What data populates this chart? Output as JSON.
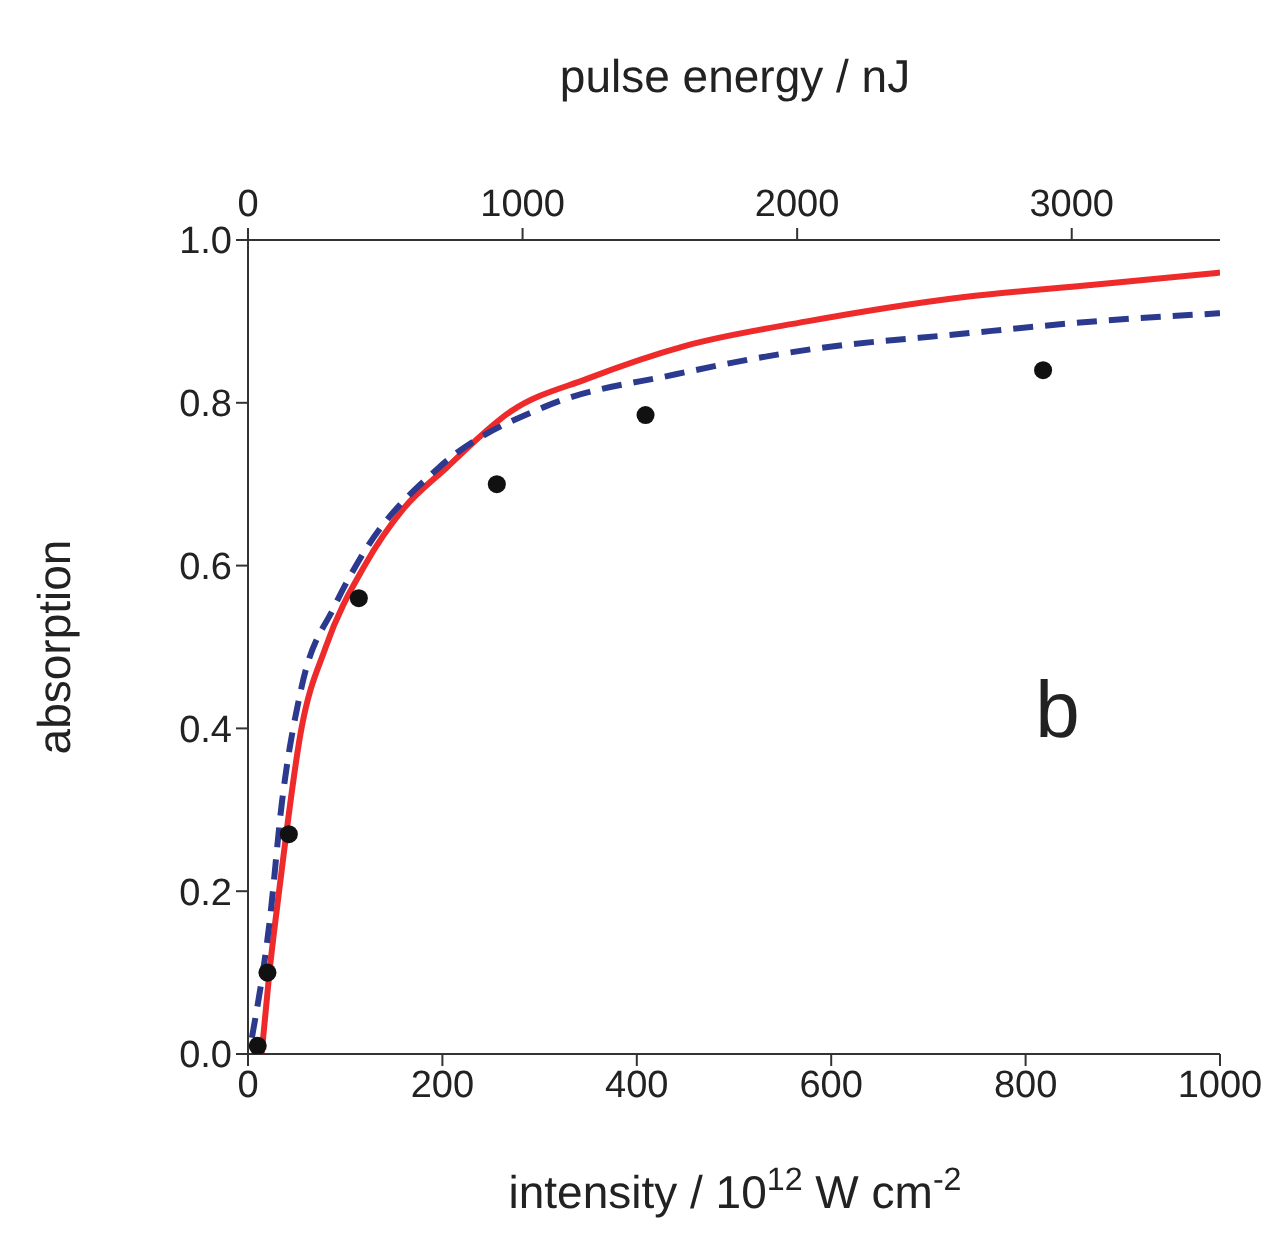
{
  "chart_data": {
    "type": "line",
    "xlabel": "intensity / 10$^{12}$ W cm$^{-2}$",
    "ylabel": "absorption",
    "x2label": "pulse energy / nJ",
    "annotations": [
      "b"
    ],
    "xlim": [
      0,
      1000
    ],
    "xticks": [
      0,
      200,
      400,
      600,
      800,
      1000
    ],
    "x2lim": [
      0,
      3540
    ],
    "x2ticks": [
      0,
      1000,
      2000,
      3000
    ],
    "ylim": [
      0,
      1
    ],
    "yticks": [
      {
        "value": 0,
        "label": "0.0"
      },
      {
        "value": 0.2,
        "label": "0.2"
      },
      {
        "value": 0.4,
        "label": "0.4"
      },
      {
        "value": 0.6,
        "label": "0.6"
      },
      {
        "value": 0.8,
        "label": "0.8"
      },
      {
        "value": 1,
        "label": "1.0"
      }
    ],
    "grid": false,
    "series": [
      {
        "color": "#ee2a2a",
        "line_style": "solid",
        "marker": "none",
        "x": [
          14,
          22,
          32,
          55,
          80,
          120,
          160,
          204,
          271,
          350,
          450,
          575,
          737,
          870,
          1000
        ],
        "values": [
          0,
          0.1,
          0.2,
          0.4,
          0.5,
          0.6,
          0.67,
          0.72,
          0.79,
          0.83,
          0.87,
          0.9,
          0.93,
          0.945,
          0.96
        ]
      },
      {
        "color": "#2b3a8f",
        "line_style": "dashed",
        "marker": "none",
        "x": [
          4,
          22,
          35,
          55,
          89,
          116,
          196,
          305,
          440,
          575,
          737,
          870,
          1000
        ],
        "values": [
          0.02,
          0.16,
          0.31,
          0.45,
          0.55,
          0.61,
          0.72,
          0.795,
          0.835,
          0.865,
          0.885,
          0.9,
          0.91
        ]
      },
      {
        "type": "scatter",
        "color": "#111111",
        "marker": "circle",
        "x": [
          10,
          20,
          42,
          114,
          256,
          409,
          818
        ],
        "values": [
          0.01,
          0.1,
          0.27,
          0.56,
          0.7,
          0.785,
          0.84
        ]
      }
    ]
  }
}
